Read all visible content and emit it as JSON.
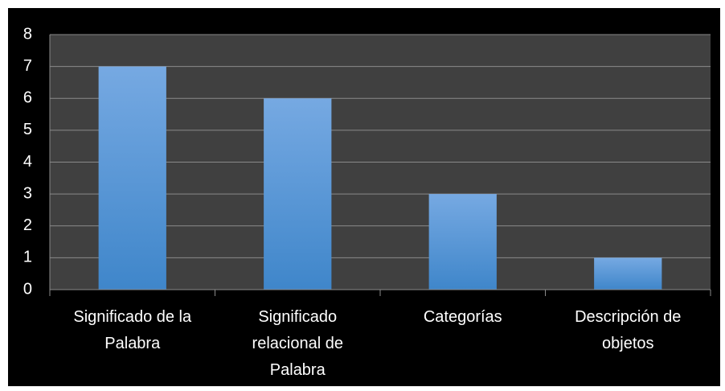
{
  "chart_data": {
    "type": "bar",
    "categories": [
      "Significado de la Palabra",
      "Significado relacional de Palabra",
      "Categorías",
      "Descripción de objetos"
    ],
    "values": [
      7,
      6,
      3,
      1
    ],
    "color": "#5a96d8",
    "ylim": [
      0,
      8
    ],
    "yticks": [
      0,
      1,
      2,
      3,
      4,
      5,
      6,
      7,
      8
    ],
    "grid": true
  }
}
